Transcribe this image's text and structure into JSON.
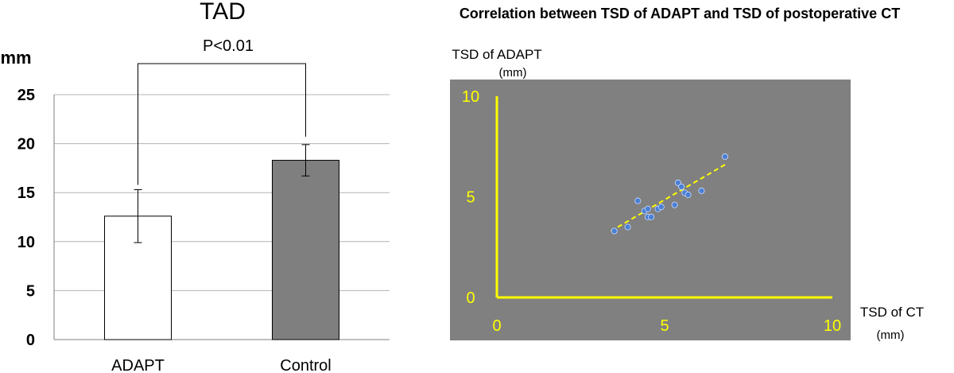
{
  "chart_data": [
    {
      "type": "bar",
      "title": "TAD",
      "ylabel": "mm",
      "xlabel": "",
      "categories": [
        "ADAPT",
        "Control"
      ],
      "values": [
        12.6,
        18.3
      ],
      "error": [
        2.7,
        1.6
      ],
      "bar_colors": [
        "#ffffff",
        "#7f7f7f"
      ],
      "ylim": [
        0,
        25
      ],
      "yticks": [
        "0",
        "5",
        "10",
        "15",
        "20",
        "25"
      ],
      "grid": true,
      "significance": "P<0.01"
    },
    {
      "type": "scatter",
      "title": "Correlation between TSD of ADAPT and TSD of postoperative CT",
      "xlabel": "TSD of CT",
      "xunit": "(mm)",
      "ylabel": "TSD of ADAPT",
      "yunit": "(mm)",
      "xlim": [
        0,
        10
      ],
      "ylim": [
        0,
        10
      ],
      "xticks": [
        "0",
        "5",
        "10"
      ],
      "yticks": [
        "0",
        "5",
        "10"
      ],
      "background": "#808080",
      "axis_color": "#ffff00",
      "point_color": "#4a7fd4",
      "trend_color": "#ffff00",
      "points": [
        {
          "x": 3.5,
          "y": 3.3
        },
        {
          "x": 3.9,
          "y": 3.5
        },
        {
          "x": 4.2,
          "y": 4.8
        },
        {
          "x": 4.4,
          "y": 4.3
        },
        {
          "x": 4.5,
          "y": 4.0
        },
        {
          "x": 4.6,
          "y": 4.0
        },
        {
          "x": 4.5,
          "y": 4.4
        },
        {
          "x": 4.8,
          "y": 4.4
        },
        {
          "x": 4.9,
          "y": 4.5
        },
        {
          "x": 5.3,
          "y": 4.6
        },
        {
          "x": 5.4,
          "y": 5.7
        },
        {
          "x": 5.5,
          "y": 5.5
        },
        {
          "x": 5.6,
          "y": 5.2
        },
        {
          "x": 5.7,
          "y": 5.1
        },
        {
          "x": 6.1,
          "y": 5.3
        },
        {
          "x": 6.8,
          "y": 7.0
        }
      ],
      "trendline": [
        {
          "x": 3.4,
          "y": 3.3
        },
        {
          "x": 6.8,
          "y": 6.6
        }
      ]
    }
  ]
}
